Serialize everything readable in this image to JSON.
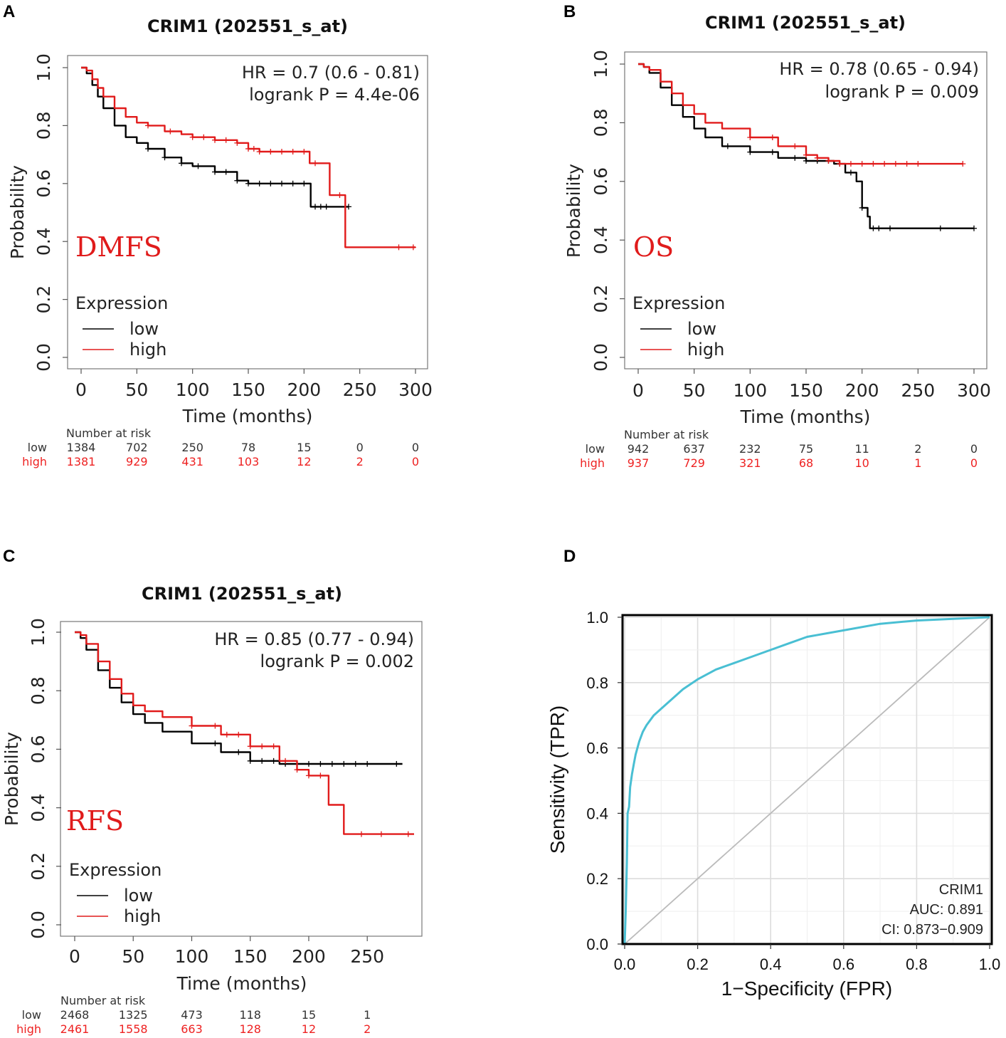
{
  "chart_data": [
    {
      "type": "line",
      "panel": "A",
      "title": "CRIM1 (202551_s_at)",
      "label": "DMFS",
      "hr_text": "HR = 0.7 (0.6 - 0.81)",
      "p_text": "logrank P = 4.4e-06",
      "xlabel": "Time (months)",
      "ylabel": "Probability",
      "xlim": [
        0,
        300
      ],
      "ylim": [
        0,
        1
      ],
      "xticks": [
        0,
        50,
        100,
        150,
        200,
        250,
        300
      ],
      "yticks": [
        "0.0",
        "0.2",
        "0.4",
        "0.6",
        "0.8",
        "1.0"
      ],
      "legend_title": "Expression",
      "series": [
        {
          "name": "low",
          "color": "#000000",
          "x": [
            0,
            5,
            10,
            15,
            20,
            30,
            40,
            50,
            60,
            75,
            90,
            100,
            120,
            140,
            150,
            155,
            200,
            205,
            206,
            240
          ],
          "y": [
            1.0,
            0.98,
            0.94,
            0.9,
            0.86,
            0.8,
            0.76,
            0.74,
            0.72,
            0.69,
            0.67,
            0.66,
            0.64,
            0.61,
            0.6,
            0.6,
            0.6,
            0.6,
            0.52,
            0.52
          ],
          "censor_x": [
            60,
            75,
            90,
            105,
            120,
            130,
            140,
            150,
            160,
            170,
            180,
            190,
            200,
            210,
            215,
            220,
            240
          ]
        },
        {
          "name": "high",
          "color": "#e11b1b",
          "x": [
            0,
            5,
            10,
            15,
            20,
            30,
            40,
            50,
            60,
            75,
            90,
            100,
            120,
            140,
            150,
            160,
            190,
            205,
            222,
            223,
            236,
            237,
            300
          ],
          "y": [
            1.0,
            0.99,
            0.96,
            0.93,
            0.9,
            0.86,
            0.83,
            0.81,
            0.8,
            0.78,
            0.77,
            0.76,
            0.75,
            0.74,
            0.72,
            0.71,
            0.71,
            0.67,
            0.67,
            0.56,
            0.56,
            0.38,
            0.38
          ],
          "censor_x": [
            60,
            80,
            100,
            110,
            120,
            130,
            140,
            150,
            155,
            160,
            170,
            180,
            190,
            200,
            210,
            232,
            285,
            298
          ]
        }
      ],
      "risk_table": {
        "header": "Number at risk",
        "times": [
          0,
          50,
          100,
          150,
          200,
          250,
          300
        ],
        "rows": [
          {
            "name": "low",
            "values": [
              "1384",
              "702",
              "250",
              "78",
              "15",
              "0",
              "0"
            ]
          },
          {
            "name": "high",
            "values": [
              "1381",
              "929",
              "431",
              "103",
              "12",
              "2",
              "0"
            ]
          }
        ]
      }
    },
    {
      "type": "line",
      "panel": "B",
      "title": "CRIM1 (202551_s_at)",
      "label": "OS",
      "hr_text": "HR = 0.78 (0.65 - 0.94)",
      "p_text": "logrank P = 0.009",
      "xlabel": "Time (months)",
      "ylabel": "Probability",
      "xlim": [
        0,
        300
      ],
      "ylim": [
        0,
        1
      ],
      "xticks": [
        0,
        50,
        100,
        150,
        200,
        250,
        300
      ],
      "yticks": [
        "0.0",
        "0.2",
        "0.4",
        "0.6",
        "0.8",
        "1.0"
      ],
      "legend_title": "Expression",
      "series": [
        {
          "name": "low",
          "color": "#000000",
          "x": [
            0,
            5,
            10,
            20,
            30,
            40,
            50,
            60,
            75,
            100,
            125,
            150,
            175,
            185,
            195,
            198,
            200,
            203,
            205,
            207,
            300
          ],
          "y": [
            1.0,
            0.99,
            0.97,
            0.92,
            0.86,
            0.82,
            0.78,
            0.75,
            0.72,
            0.7,
            0.68,
            0.67,
            0.66,
            0.63,
            0.6,
            0.6,
            0.51,
            0.51,
            0.48,
            0.44,
            0.44
          ],
          "censor_x": [
            80,
            100,
            120,
            140,
            150,
            160,
            170,
            180,
            190,
            200,
            210,
            215,
            225,
            270,
            300
          ]
        },
        {
          "name": "high",
          "color": "#e11b1b",
          "x": [
            0,
            5,
            10,
            20,
            30,
            40,
            50,
            60,
            75,
            100,
            125,
            150,
            160,
            170,
            180,
            190,
            290
          ],
          "y": [
            1.0,
            0.99,
            0.98,
            0.94,
            0.9,
            0.86,
            0.83,
            0.8,
            0.78,
            0.75,
            0.72,
            0.69,
            0.68,
            0.67,
            0.66,
            0.66,
            0.66
          ],
          "censor_x": [
            100,
            120,
            140,
            150,
            160,
            170,
            180,
            190,
            200,
            210,
            220,
            230,
            240,
            250,
            290
          ]
        }
      ],
      "risk_table": {
        "header": "Number at risk",
        "times": [
          0,
          50,
          100,
          150,
          200,
          250,
          300
        ],
        "rows": [
          {
            "name": "low",
            "values": [
              "942",
              "637",
              "232",
              "75",
              "11",
              "2",
              "0"
            ]
          },
          {
            "name": "high",
            "values": [
              "937",
              "729",
              "321",
              "68",
              "10",
              "1",
              "0"
            ]
          }
        ]
      }
    },
    {
      "type": "line",
      "panel": "C",
      "title": "CRIM1 (202551_s_at)",
      "label": "RFS",
      "hr_text": "HR = 0.85 (0.77 - 0.94)",
      "p_text": "logrank P = 0.002",
      "xlabel": "Time (months)",
      "ylabel": "Probability",
      "xlim": [
        0,
        290
      ],
      "ylim": [
        0,
        1
      ],
      "xticks": [
        0,
        50,
        100,
        150,
        200,
        250
      ],
      "yticks": [
        "0.0",
        "0.2",
        "0.4",
        "0.6",
        "0.8",
        "1.0"
      ],
      "legend_title": "Expression",
      "series": [
        {
          "name": "low",
          "color": "#000000",
          "x": [
            0,
            5,
            10,
            20,
            30,
            40,
            50,
            60,
            75,
            100,
            125,
            150,
            175,
            200,
            280
          ],
          "y": [
            1.0,
            0.98,
            0.94,
            0.87,
            0.81,
            0.76,
            0.72,
            0.69,
            0.66,
            0.62,
            0.59,
            0.56,
            0.55,
            0.55,
            0.55
          ],
          "censor_x": [
            120,
            140,
            150,
            160,
            170,
            180,
            190,
            200,
            210,
            220,
            230,
            240,
            250,
            275
          ]
        },
        {
          "name": "high",
          "color": "#e11b1b",
          "x": [
            0,
            5,
            10,
            20,
            30,
            40,
            50,
            60,
            75,
            100,
            125,
            150,
            175,
            190,
            200,
            216,
            217,
            229,
            230,
            290
          ],
          "y": [
            1.0,
            0.99,
            0.96,
            0.9,
            0.84,
            0.79,
            0.75,
            0.73,
            0.71,
            0.68,
            0.65,
            0.61,
            0.56,
            0.53,
            0.51,
            0.51,
            0.41,
            0.41,
            0.31,
            0.31
          ],
          "censor_x": [
            100,
            120,
            130,
            140,
            150,
            160,
            170,
            180,
            190,
            200,
            210,
            245,
            262,
            285
          ]
        }
      ],
      "risk_table": {
        "header": "Number at risk",
        "times": [
          0,
          50,
          100,
          150,
          200,
          250
        ],
        "rows": [
          {
            "name": "low",
            "values": [
              "2468",
              "1325",
              "473",
              "118",
              "15",
              "1"
            ]
          },
          {
            "name": "high",
            "values": [
              "2461",
              "1558",
              "663",
              "128",
              "12",
              "2"
            ]
          }
        ]
      }
    },
    {
      "type": "line",
      "panel": "D",
      "title": "",
      "xlabel": "1−Specificity (FPR)",
      "ylabel": "Sensitivity (TPR)",
      "xlim": [
        0,
        1
      ],
      "ylim": [
        0,
        1
      ],
      "xticks": [
        "0.0",
        "0.2",
        "0.4",
        "0.6",
        "0.8",
        "1.0"
      ],
      "yticks": [
        "0.0",
        "0.2",
        "0.4",
        "0.6",
        "0.8",
        "1.0"
      ],
      "annotation": [
        "CRIM1",
        "AUC: 0.891",
        "CI: 0.873−0.909"
      ],
      "series": [
        {
          "name": "CRIM1",
          "color": "#49bfd3",
          "x": [
            0,
            0.003,
            0.006,
            0.008,
            0.012,
            0.015,
            0.02,
            0.025,
            0.03,
            0.04,
            0.05,
            0.06,
            0.08,
            0.1,
            0.13,
            0.16,
            0.2,
            0.25,
            0.3,
            0.35,
            0.4,
            0.45,
            0.5,
            0.6,
            0.7,
            0.8,
            0.9,
            1.0
          ],
          "y": [
            0,
            0.1,
            0.25,
            0.4,
            0.42,
            0.48,
            0.52,
            0.55,
            0.58,
            0.62,
            0.65,
            0.67,
            0.7,
            0.72,
            0.75,
            0.78,
            0.81,
            0.84,
            0.86,
            0.88,
            0.9,
            0.92,
            0.94,
            0.96,
            0.98,
            0.99,
            0.995,
            1.0
          ]
        },
        {
          "name": "reference",
          "color": "#bbbbbb",
          "x": [
            0,
            1
          ],
          "y": [
            0,
            1
          ]
        }
      ]
    }
  ],
  "panel_labels": [
    "A",
    "B",
    "C",
    "D"
  ]
}
